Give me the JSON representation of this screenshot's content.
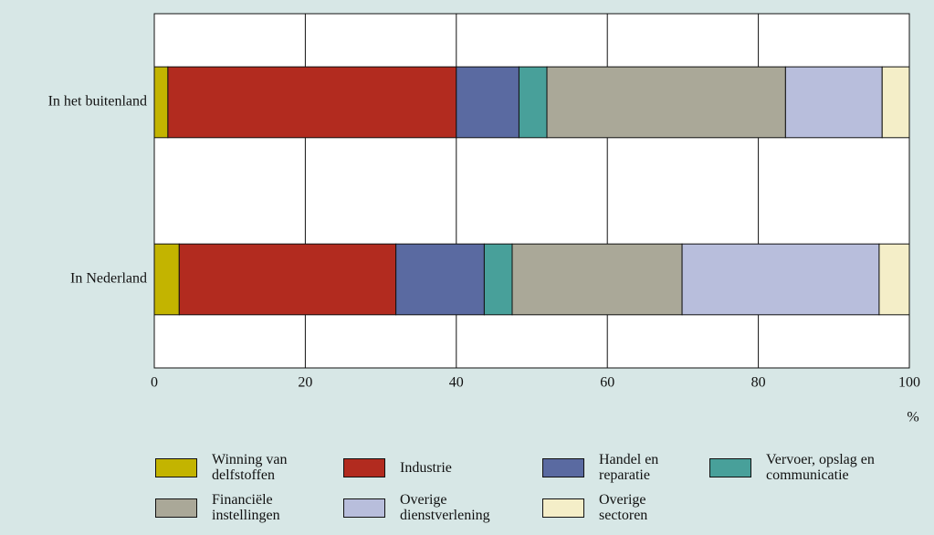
{
  "chart_data": {
    "type": "stacked-bar-horizontal",
    "categories": [
      "In het buitenland",
      "In Nederland"
    ],
    "series": [
      {
        "name": "Winning van\ndelfstoffen",
        "color": "#c3b400",
        "values": [
          1.8,
          3.3
        ]
      },
      {
        "name": "Industrie",
        "color": "#b22b1f",
        "values": [
          38.2,
          28.7
        ]
      },
      {
        "name": "Handel en\nreparatie",
        "color": "#5a6aa1",
        "values": [
          8.3,
          11.7
        ]
      },
      {
        "name": "Vervoer, opslag en\ncommunicatie",
        "color": "#48a09a",
        "values": [
          3.7,
          3.7
        ]
      },
      {
        "name": "Financiële\ninstellingen",
        "color": "#aaa898",
        "values": [
          31.6,
          22.5
        ]
      },
      {
        "name": "Overige\ndienstverlening",
        "color": "#b8bedc",
        "values": [
          12.8,
          26.1
        ]
      },
      {
        "name": "Overige\nsectoren",
        "color": "#f4eec8",
        "values": [
          3.6,
          4.0
        ]
      }
    ],
    "xlim": [
      0,
      100
    ],
    "xticks": [
      0,
      20,
      40,
      60,
      80,
      100
    ],
    "xlabel": "%",
    "grid": true
  }
}
